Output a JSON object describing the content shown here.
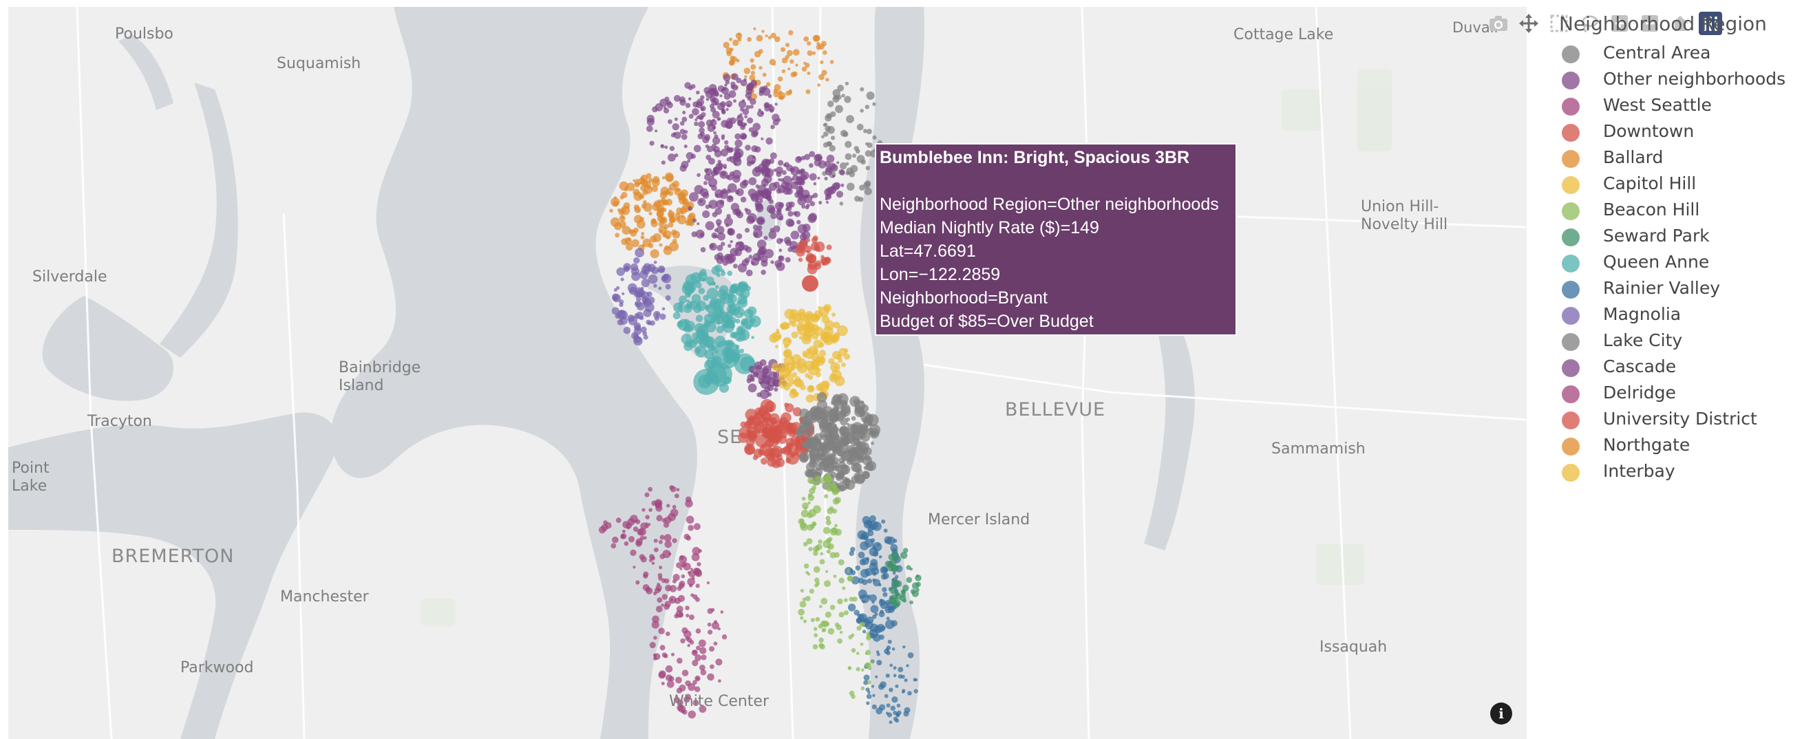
{
  "map": {
    "places": [
      {
        "name": "Poulsbo"
      },
      {
        "name": "Suquamish"
      },
      {
        "name": "Silverdale"
      },
      {
        "name": "Bainbridge\nIsland"
      },
      {
        "name": "Tracyton"
      },
      {
        "name": "Point\nLake"
      },
      {
        "name": "BREMERTON"
      },
      {
        "name": "Manchester"
      },
      {
        "name": "Parkwood"
      },
      {
        "name": "White Center"
      },
      {
        "name": "SE"
      },
      {
        "name": "Cottage Lake"
      },
      {
        "name": "Duvall"
      },
      {
        "name": "Union Hill-\nNovelty Hill"
      },
      {
        "name": "BELLEVUE"
      },
      {
        "name": "Sammamish"
      },
      {
        "name": "Mercer Island"
      },
      {
        "name": "Issaquah"
      }
    ],
    "info_icon": "i"
  },
  "tooltip": {
    "title": "Bumblebee Inn: Bright, Spacious 3BR",
    "lines": [
      "Neighborhood Region=Other neighborhoods",
      "Median Nightly Rate ($)=149",
      "Lat=47.6691",
      "Lon=−122.2859",
      "Neighborhood=Bryant",
      "Budget of $85=Over Budget"
    ],
    "color": "#6a3d6b"
  },
  "modebar": {
    "buttons": [
      "camera-icon",
      "pan-icon",
      "box-select-icon",
      "lasso-icon",
      "zoom-in-icon",
      "zoom-out-icon",
      "reset-icon",
      "plotly-logo-icon"
    ]
  },
  "legend": {
    "title": "Neighborhood Region",
    "items": [
      {
        "label": "Central Area",
        "color": "#7f7f7f"
      },
      {
        "label": "Other neighborhoods",
        "color": "#80488a"
      },
      {
        "label": "West Seattle",
        "color": "#a4467e"
      },
      {
        "label": "Downtown",
        "color": "#d4534a"
      },
      {
        "label": "Ballard",
        "color": "#e08b2c"
      },
      {
        "label": "Capitol Hill",
        "color": "#ecbc3c"
      },
      {
        "label": "Beacon Hill",
        "color": "#8dbd5a"
      },
      {
        "label": "Seward Park",
        "color": "#3f9168"
      },
      {
        "label": "Queen Anne",
        "color": "#4fb0ae"
      },
      {
        "label": "Rainier Valley",
        "color": "#3a72a0"
      },
      {
        "label": "Magnolia",
        "color": "#7965b0"
      },
      {
        "label": "Lake City",
        "color": "#7f7f7f"
      },
      {
        "label": "Cascade",
        "color": "#80488a"
      },
      {
        "label": "Delridge",
        "color": "#a4467e"
      },
      {
        "label": "University District",
        "color": "#d4534a"
      },
      {
        "label": "Northgate",
        "color": "#e08b2c"
      },
      {
        "label": "Interbay",
        "color": "#ecbc3c"
      }
    ]
  }
}
